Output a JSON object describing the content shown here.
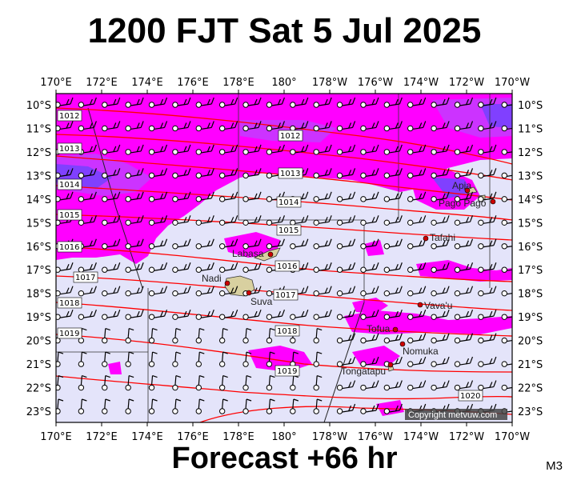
{
  "title": "1200 FJT Sat 5 Jul 2025",
  "footer": "Forecast +66 hr",
  "code": "M3",
  "copyright": "Copyright metvuw.com",
  "lon_labels": [
    "170°E",
    "172°E",
    "174°E",
    "176°E",
    "178°E",
    "180°",
    "178°W",
    "176°W",
    "174°W",
    "172°W",
    "170°W"
  ],
  "lat_labels": [
    "10°S",
    "11°S",
    "12°S",
    "13°S",
    "14°S",
    "15°S",
    "16°S",
    "17°S",
    "18°S",
    "19°S",
    "20°S",
    "21°S",
    "22°S",
    "23°S"
  ],
  "isobars": [
    "1012",
    "1012",
    "1013",
    "1013",
    "1014",
    "1014",
    "1015",
    "1015",
    "1016",
    "1016",
    "1017",
    "1017",
    "1018",
    "1018",
    "1019",
    "1019",
    "1020"
  ],
  "places": [
    "Apia",
    "Pago Pago",
    "Tafahi",
    "Labasa",
    "Nadi",
    "Suva",
    "Vava'u",
    "Tofua",
    "Nomuka",
    "Tongatapu"
  ],
  "colors": {
    "low_wind": "#e4e4fa",
    "magenta": "#ff00ff",
    "violet": "#cc33ff",
    "purple": "#8040ff",
    "isobar": "#ff0000"
  }
}
